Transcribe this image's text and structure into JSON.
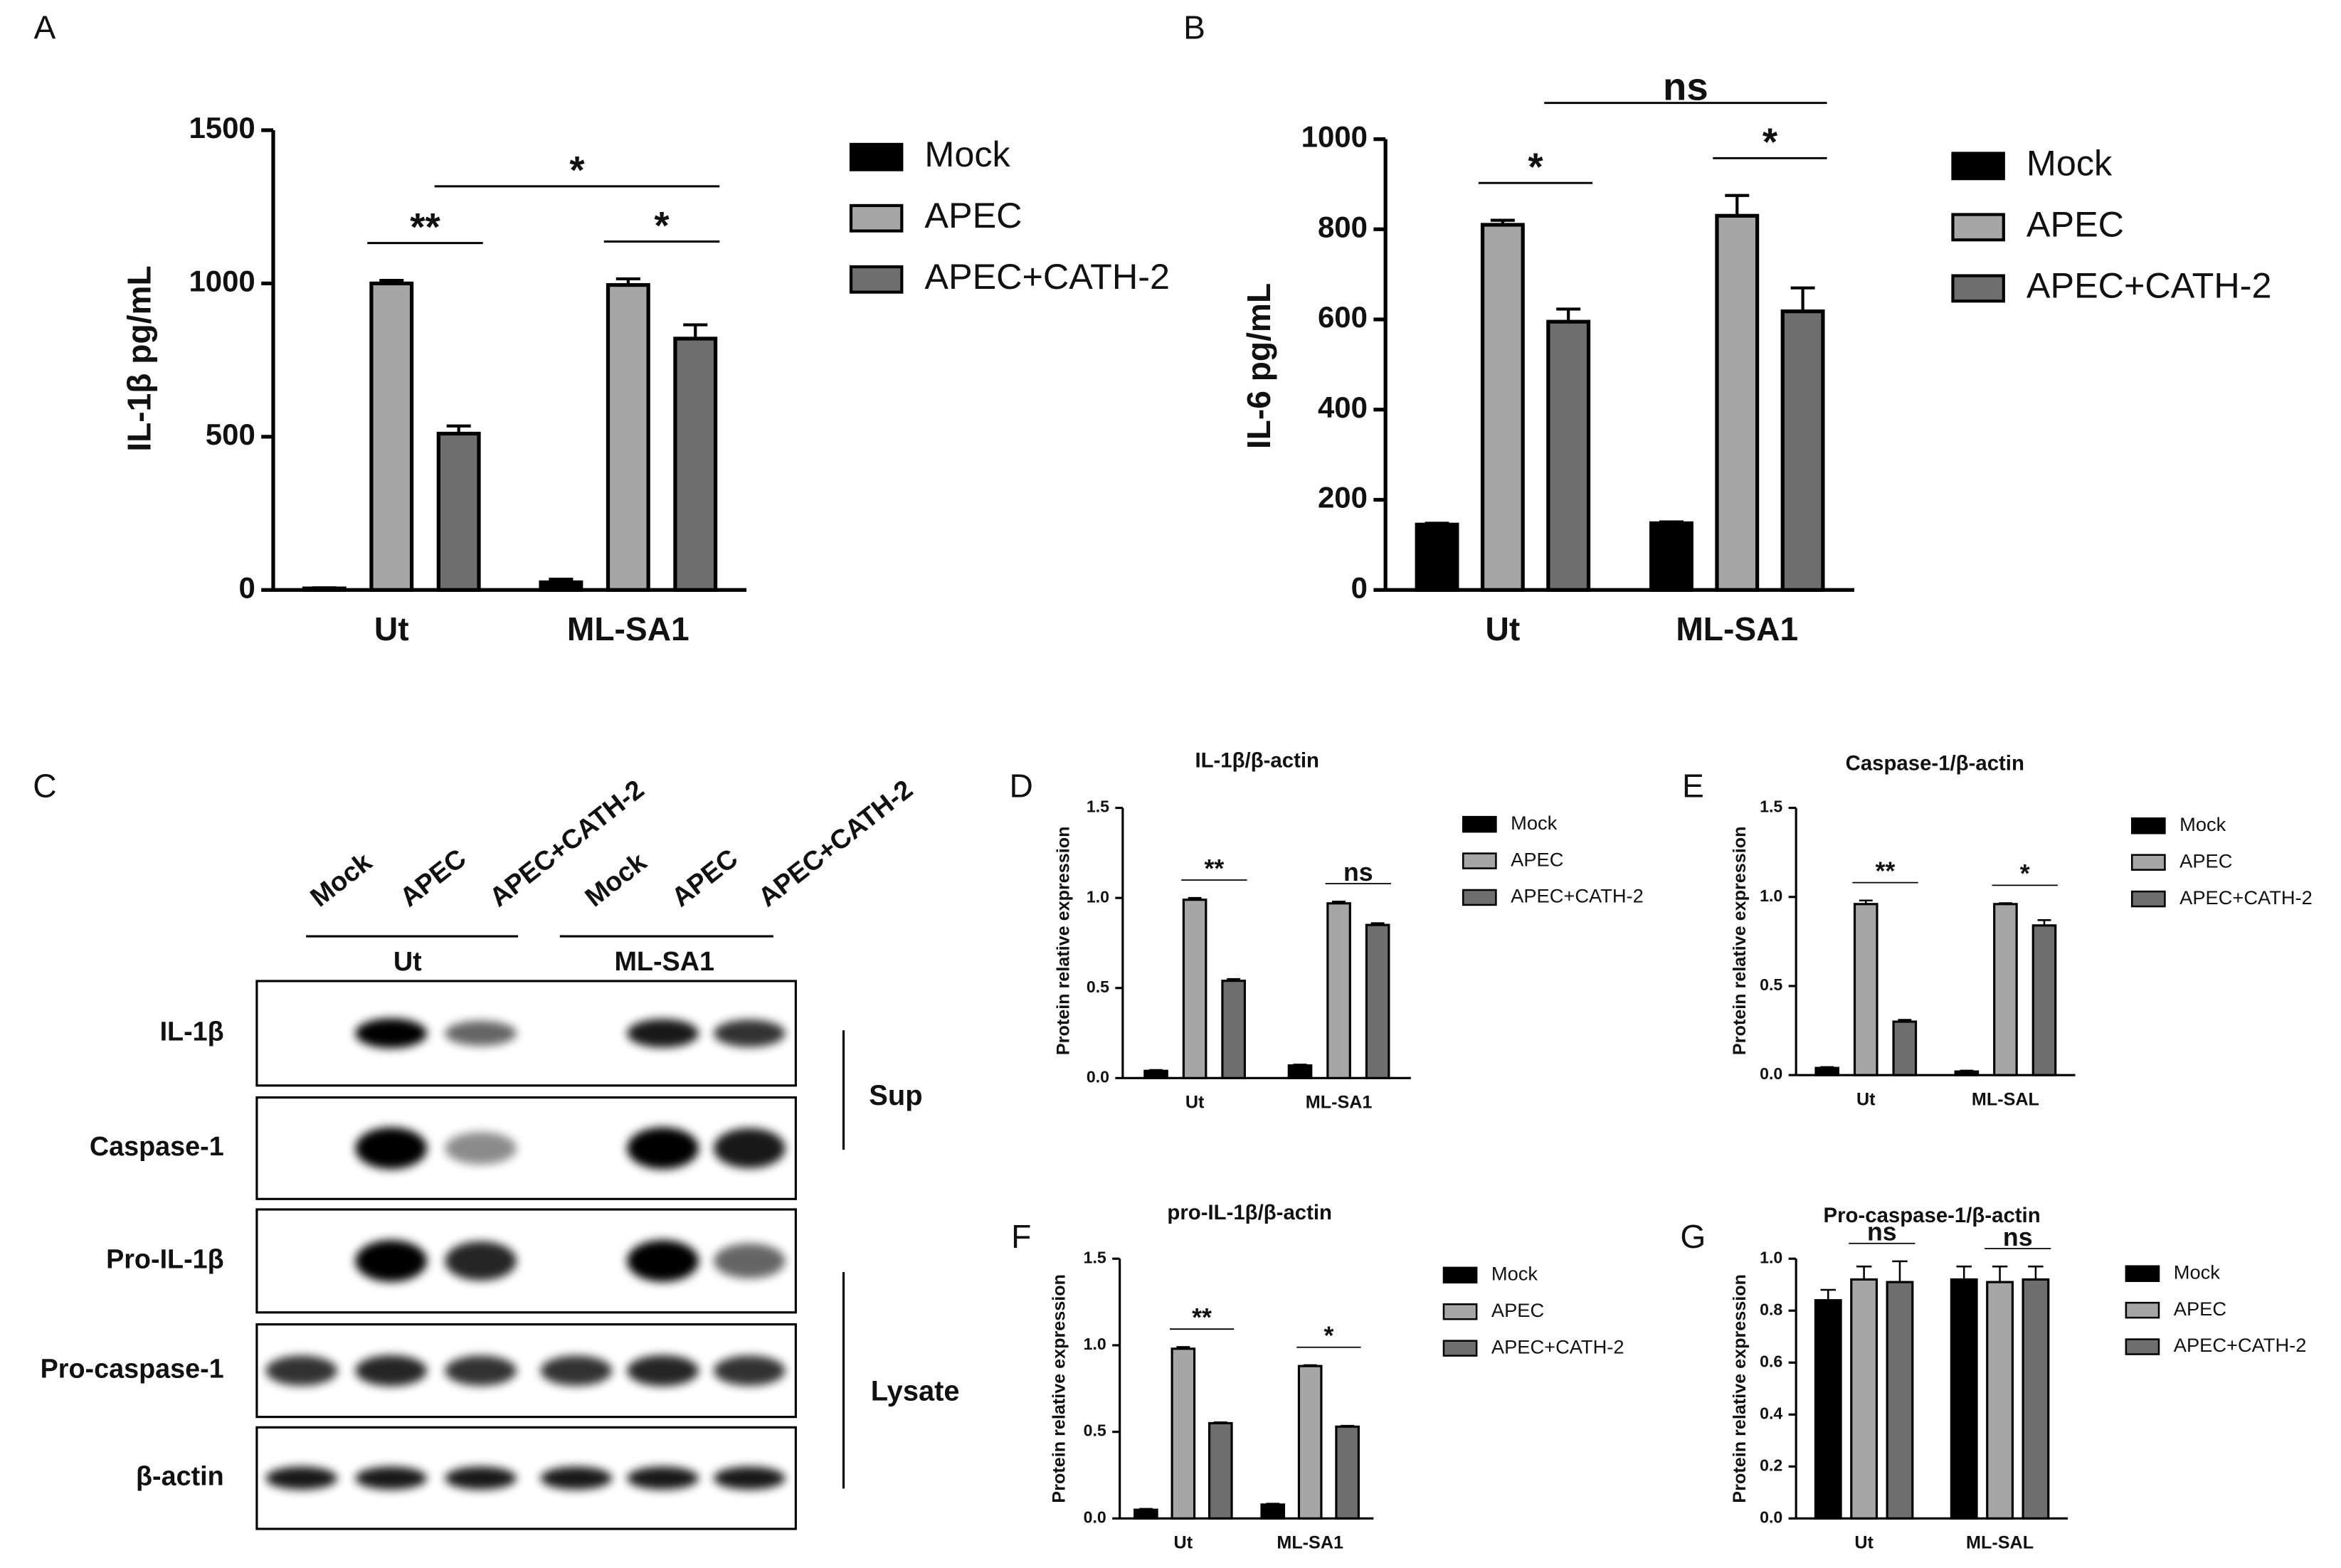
{
  "chart_data": [
    {
      "type": "bar",
      "label": "A",
      "ylabel": "IL-1β pg/mL",
      "categories": [
        "Ut",
        "ML-SA1"
      ],
      "series": [
        {
          "name": "Mock",
          "color": "#000000",
          "values": [
            5,
            25
          ],
          "errors": [
            2,
            10
          ]
        },
        {
          "name": "APEC",
          "color": "#a6a6a6",
          "values": [
            1000,
            995
          ],
          "errors": [
            10,
            20
          ]
        },
        {
          "name": "APEC+CATH-2",
          "color": "#6e6e6e",
          "values": [
            510,
            820
          ],
          "errors": [
            25,
            45
          ]
        }
      ],
      "ylim": [
        0,
        1500
      ],
      "yticks": [
        0,
        500,
        1000,
        1500
      ],
      "annotations": [
        "**",
        "*",
        "*"
      ]
    },
    {
      "type": "bar",
      "label": "B",
      "ylabel": "IL-6 pg/mL",
      "categories": [
        "Ut",
        "ML-SA1"
      ],
      "series": [
        {
          "name": "Mock",
          "color": "#000000",
          "values": [
            145,
            148
          ],
          "errors": [
            3,
            3
          ]
        },
        {
          "name": "APEC",
          "color": "#a6a6a6",
          "values": [
            810,
            830
          ],
          "errors": [
            10,
            45
          ]
        },
        {
          "name": "APEC+CATH-2",
          "color": "#6e6e6e",
          "values": [
            595,
            618
          ],
          "errors": [
            28,
            52
          ]
        }
      ],
      "ylim": [
        0,
        1000
      ],
      "yticks": [
        0,
        200,
        400,
        600,
        800,
        1000
      ],
      "annotations": [
        "*",
        "*",
        "ns"
      ]
    },
    {
      "type": "bar",
      "label": "D",
      "title": "IL-1β/β-actin",
      "ylabel": "Protein relative expression",
      "categories": [
        "Ut",
        "ML-SA1"
      ],
      "series": [
        {
          "name": "Mock",
          "color": "#000000",
          "values": [
            0.04,
            0.07
          ],
          "errors": [
            0.005,
            0.005
          ]
        },
        {
          "name": "APEC",
          "color": "#a6a6a6",
          "values": [
            0.99,
            0.97
          ],
          "errors": [
            0.01,
            0.01
          ]
        },
        {
          "name": "APEC+CATH-2",
          "color": "#6e6e6e",
          "values": [
            0.54,
            0.85
          ],
          "errors": [
            0.01,
            0.01
          ]
        }
      ],
      "ylim": [
        0,
        1.5
      ],
      "yticks": [
        {
          "value": 0,
          "label": "0.0"
        },
        0.5,
        {
          "value": 1,
          "label": "1.0"
        },
        1.5
      ],
      "annotations": [
        "**",
        "ns"
      ]
    },
    {
      "type": "bar",
      "label": "E",
      "title": "Caspase-1/β-actin",
      "ylabel": "Protein relative expression",
      "categories": [
        "Ut",
        "ML-SAL"
      ],
      "series": [
        {
          "name": "Mock",
          "color": "#000000",
          "values": [
            0.04,
            0.02
          ],
          "errors": [
            0.005,
            0.005
          ]
        },
        {
          "name": "APEC",
          "color": "#a6a6a6",
          "values": [
            0.96,
            0.96
          ],
          "errors": [
            0.02,
            0.005
          ]
        },
        {
          "name": "APEC+CATH-2",
          "color": "#6e6e6e",
          "values": [
            0.3,
            0.84
          ],
          "errors": [
            0.01,
            0.03
          ]
        }
      ],
      "ylim": [
        0,
        1.5
      ],
      "yticks": [
        {
          "value": 0,
          "label": "0.0"
        },
        0.5,
        {
          "value": 1,
          "label": "1.0"
        },
        1.5
      ],
      "annotations": [
        "**",
        "*"
      ]
    },
    {
      "type": "bar",
      "label": "F",
      "title": "pro-IL-1β/β-actin",
      "ylabel": "Protein relative expression",
      "categories": [
        "Ut",
        "ML-SA1"
      ],
      "series": [
        {
          "name": "Mock",
          "color": "#000000",
          "values": [
            0.05,
            0.08
          ],
          "errors": [
            0.005,
            0.005
          ]
        },
        {
          "name": "APEC",
          "color": "#a6a6a6",
          "values": [
            0.98,
            0.88
          ],
          "errors": [
            0.01,
            0.005
          ]
        },
        {
          "name": "APEC+CATH-2",
          "color": "#6e6e6e",
          "values": [
            0.55,
            0.53
          ],
          "errors": [
            0.005,
            0.005
          ]
        }
      ],
      "ylim": [
        0,
        1.5
      ],
      "yticks": [
        {
          "value": 0,
          "label": "0.0"
        },
        0.5,
        {
          "value": 1,
          "label": "1.0"
        },
        1.5
      ],
      "annotations": [
        "**",
        "*"
      ]
    },
    {
      "type": "bar",
      "label": "G",
      "title": "Pro-caspase-1/β-actin",
      "ylabel": "Protein relative expression",
      "categories": [
        "Ut",
        "ML-SAL"
      ],
      "series": [
        {
          "name": "Mock",
          "color": "#000000",
          "values": [
            0.84,
            0.92
          ],
          "errors": [
            0.04,
            0.05
          ]
        },
        {
          "name": "APEC",
          "color": "#a6a6a6",
          "values": [
            0.92,
            0.91
          ],
          "errors": [
            0.05,
            0.06
          ]
        },
        {
          "name": "APEC+CATH-2",
          "color": "#6e6e6e",
          "values": [
            0.91,
            0.92
          ],
          "errors": [
            0.08,
            0.05
          ]
        }
      ],
      "ylim": [
        0,
        1
      ],
      "yticks": [
        {
          "value": 0,
          "label": "0.0"
        },
        0.2,
        0.4,
        0.6,
        0.8,
        {
          "value": 1,
          "label": "1.0"
        }
      ],
      "annotations": [
        "ns",
        "ns"
      ]
    }
  ],
  "blot": {
    "label": "C",
    "lanes": [
      "Mock",
      "APEC",
      "APEC+CATH-2",
      "Mock",
      "APEC",
      "APEC+CATH-2"
    ],
    "groups": [
      "Ut",
      "ML-SA1"
    ],
    "rows": [
      "IL-1β",
      "Caspase-1",
      "Pro-IL-1β",
      "Pro-caspase-1",
      "β-actin"
    ],
    "fractions": [
      "Sup",
      "Lysate"
    ]
  }
}
